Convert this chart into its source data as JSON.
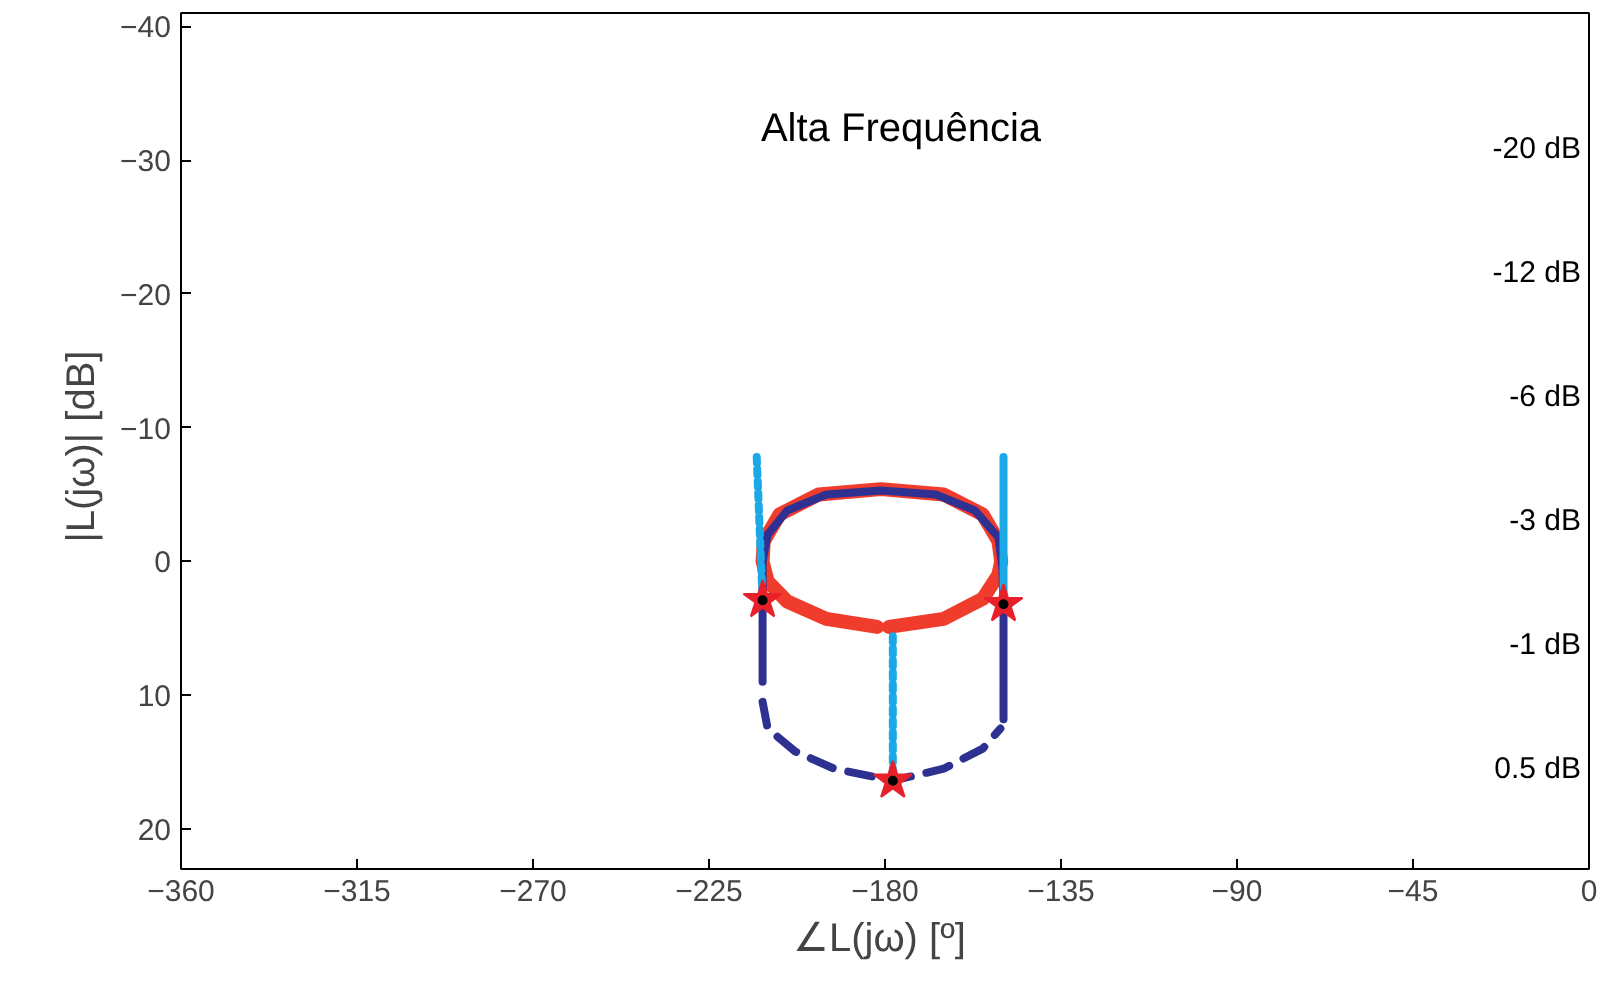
{
  "chart_data": {
    "type": "line",
    "xlabel": "∠L(jω)  [º]",
    "ylabel": "|L(jω)|  [dB]",
    "xlim": [
      -360,
      0
    ],
    "xticks": [
      -360,
      -315,
      -270,
      -225,
      -180,
      -135,
      -90,
      -45,
      0
    ],
    "ylim": [
      23,
      -41
    ],
    "yticks": [
      -40,
      -30,
      -20,
      -10,
      0,
      10,
      20
    ],
    "grid": false,
    "series": [
      {
        "color": "#f03c2c",
        "line_style": "solid",
        "x": [
          -179,
          -165,
          -155,
          -151,
          -150.3,
          -151,
          -155,
          -165,
          -181,
          -197,
          -207,
          -211,
          -211.3,
          -210,
          -205,
          -195,
          -182
        ],
        "values": [
          4.9,
          4.3,
          2.8,
          1.0,
          0,
          -1.5,
          -3.5,
          -5.0,
          -5.4,
          -5.0,
          -3.5,
          -1.5,
          0,
          1.5,
          3.0,
          4.3,
          4.9
        ]
      },
      {
        "color": "#2e3192",
        "line_style": "solid",
        "x": [
          -211.3,
          -211.3,
          -211.3,
          -210,
          -205,
          -195,
          -181,
          -167,
          -157,
          -151,
          -150,
          -149.7,
          -149.7
        ],
        "values": [
          9.0,
          2.9,
          0,
          -2,
          -3.8,
          -5.0,
          -5.3,
          -5.0,
          -3.8,
          -1.8,
          0.5,
          3.2,
          11.8
        ]
      },
      {
        "color": "#2e3192",
        "line_style": "dashed",
        "x": [
          -211.3,
          -210,
          -203,
          -193,
          -178,
          -165,
          -155,
          -150.5
        ],
        "values": [
          10.5,
          12.5,
          14.2,
          15.5,
          16.4,
          15.5,
          14,
          12.5
        ]
      },
      {
        "color": "#1ba8e6",
        "line_style": "dotted",
        "x": [
          -212.8,
          -211.3
        ],
        "values": [
          -7.8,
          2.9
        ]
      },
      {
        "color": "#1ba8e6",
        "line_style": "dotted",
        "x": [
          -178,
          -178
        ],
        "values": [
          5.6,
          16.4
        ]
      },
      {
        "color": "#1ba8e6",
        "line_style": "solid",
        "x": [
          -149.7,
          -149.7
        ],
        "values": [
          -7.8,
          2.5
        ]
      },
      {
        "type": "scatter",
        "marker": "star",
        "color": "#e8202a",
        "x": [
          -211.3,
          -149.7,
          -178
        ],
        "values": [
          2.9,
          3.2,
          16.4
        ]
      }
    ],
    "annotations": [
      "Alta Frequência",
      "-20 dB",
      "-12 dB",
      "-6 dB",
      "-3 dB",
      "-1 dB",
      "0.5 dB"
    ]
  }
}
